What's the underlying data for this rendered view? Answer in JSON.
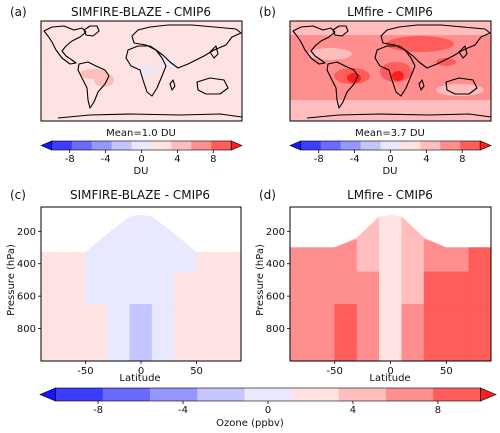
{
  "palette": {
    "levels": [
      -10,
      -8,
      -6,
      -4,
      -2,
      0,
      2,
      4,
      6,
      8,
      10
    ],
    "colors": [
      "#1515ff",
      "#3d3dff",
      "#6a6aff",
      "#9696ff",
      "#c4c4ff",
      "#e8e8ff",
      "#ffe2e2",
      "#ffbdbd",
      "#ff8e8e",
      "#ff5c5c",
      "#ff1e1e"
    ]
  },
  "panels": {
    "a": {
      "tag": "(a)",
      "title": "SIMFIRE-BLAZE - CMIP6",
      "mean_text": "Mean=1.0 DU",
      "cbar_label": "DU",
      "cbar_ticks": [
        "-8",
        "-4",
        "0",
        "4",
        "8"
      ]
    },
    "b": {
      "tag": "(b)",
      "title": "LMfire - CMIP6",
      "mean_text": "Mean=3.7 DU",
      "cbar_label": "DU",
      "cbar_ticks": [
        "-8",
        "-4",
        "0",
        "4",
        "8"
      ]
    },
    "c": {
      "tag": "(c)",
      "title": "SIMFIRE-BLAZE - CMIP6"
    },
    "d": {
      "tag": "(d)",
      "title": "LMfire - CMIP6"
    },
    "bottom_cbar": {
      "label": "Ozone (ppbv)",
      "ticks": [
        "-8",
        "-4",
        "0",
        "4",
        "8"
      ]
    }
  },
  "chart_data": [
    {
      "type": "heatmap",
      "title": "SIMFIRE-BLAZE - CMIP6",
      "subtitle": "Mean=1.0 DU",
      "units": "DU",
      "description_values": {
        "global_mean": 1.0,
        "background_level": 1,
        "max_tropical_level": 4,
        "min_level": -1
      }
    },
    {
      "type": "heatmap",
      "title": "LMfire - CMIP6",
      "subtitle": "Mean=3.7 DU",
      "units": "DU",
      "description_values": {
        "global_mean": 3.7,
        "background_level": 5,
        "max_tropical_level": 9,
        "min_level": 3
      }
    },
    {
      "type": "heatmap",
      "title": "SIMFIRE-BLAZE - CMIP6",
      "xlabel": "Latitude",
      "ylabel": "Pressure (hPa)",
      "xlim": [
        -90,
        90
      ],
      "ylim": [
        1000,
        50
      ],
      "xticks": [
        "-50",
        "0",
        "50"
      ],
      "yticks": [
        "200",
        "400",
        "600",
        "800"
      ],
      "columns": [
        {
          "lat": -90,
          "top": 330,
          "v": [
            0.8,
            2.5,
            3.2,
            3.5
          ]
        },
        {
          "lat": -70,
          "top": 330,
          "v": [
            0.8,
            2.2,
            2.6,
            2.8
          ]
        },
        {
          "lat": -50,
          "top": 330,
          "v": [
            0.8,
            2.0,
            2.6,
            3.0
          ]
        },
        {
          "lat": -30,
          "top": 215,
          "v": [
            0.8,
            1.0,
            1.2,
            1.5
          ]
        },
        {
          "lat": -10,
          "top": 110,
          "v": [
            0.8,
            0.6,
            0.6,
            0.5
          ]
        },
        {
          "lat": 0,
          "top": 100,
          "v": [
            0.8,
            0.5,
            0.3,
            -0.6
          ]
        },
        {
          "lat": 10,
          "top": 110,
          "v": [
            0.8,
            0.6,
            0.4,
            0.3
          ]
        },
        {
          "lat": 30,
          "top": 215,
          "v": [
            0.8,
            1.0,
            1.4,
            2.0
          ]
        },
        {
          "lat": 50,
          "top": 330,
          "v": [
            0.8,
            2.2,
            3.0,
            3.2
          ]
        },
        {
          "lat": 70,
          "top": 330,
          "v": [
            0.8,
            2.6,
            3.2,
            3.4
          ]
        },
        {
          "lat": 90,
          "top": 330,
          "v": [
            0.8,
            2.8,
            3.4,
            3.6
          ]
        }
      ]
    },
    {
      "type": "heatmap",
      "title": "LMfire - CMIP6",
      "xlabel": "Latitude",
      "ylabel": "Pressure (hPa)",
      "xlim": [
        -90,
        90
      ],
      "ylim": [
        1000,
        50
      ],
      "xticks": [
        "-50",
        "0",
        "50"
      ],
      "yticks": [
        "200",
        "400",
        "600",
        "800"
      ],
      "columns": [
        {
          "lat": -90,
          "top": 300,
          "v": [
            6.5,
            7.2,
            7.5,
            7.8
          ]
        },
        {
          "lat": -70,
          "top": 300,
          "v": [
            6.5,
            7.0,
            7.4,
            7.6
          ]
        },
        {
          "lat": -50,
          "top": 300,
          "v": [
            6.0,
            6.8,
            7.2,
            7.6
          ]
        },
        {
          "lat": -30,
          "top": 240,
          "v": [
            5.0,
            6.5,
            8.5,
            8.6
          ]
        },
        {
          "lat": -10,
          "top": 110,
          "v": [
            3.0,
            3.5,
            4.5,
            4.0
          ]
        },
        {
          "lat": 0,
          "top": 100,
          "v": [
            3.0,
            2.5,
            1.8,
            1.8
          ]
        },
        {
          "lat": 10,
          "top": 110,
          "v": [
            3.0,
            3.5,
            4.2,
            4.5
          ]
        },
        {
          "lat": 30,
          "top": 240,
          "v": [
            5.0,
            6.5,
            7.5,
            8.2
          ]
        },
        {
          "lat": 50,
          "top": 300,
          "v": [
            6.2,
            7.5,
            8.5,
            8.8
          ]
        },
        {
          "lat": 70,
          "top": 300,
          "v": [
            6.5,
            8.2,
            8.7,
            9.0
          ]
        },
        {
          "lat": 90,
          "top": 300,
          "v": [
            6.5,
            8.2,
            8.7,
            9.0
          ]
        }
      ],
      "levels_hpa": [
        250,
        450,
        650,
        1000
      ]
    }
  ]
}
